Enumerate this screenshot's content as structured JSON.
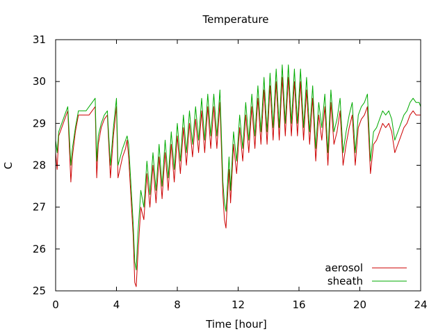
{
  "chart_data": {
    "type": "line",
    "title": "Temperature",
    "xlabel": "Time [hour]",
    "ylabel": "C",
    "xlim": [
      0,
      24
    ],
    "ylim": [
      25,
      31
    ],
    "xticks": [
      0,
      4,
      8,
      12,
      16,
      20,
      24
    ],
    "yticks": [
      25,
      26,
      27,
      28,
      29,
      30,
      31
    ],
    "grid": false,
    "legend_position": "bottom-right",
    "series": [
      {
        "name": "aerosol",
        "color": "#cc0000",
        "x": [
          0.0,
          0.1,
          0.2,
          0.4,
          0.6,
          0.8,
          1.0,
          1.1,
          1.3,
          1.5,
          1.6,
          1.8,
          2.0,
          2.2,
          2.4,
          2.6,
          2.7,
          2.8,
          3.0,
          3.2,
          3.4,
          3.6,
          3.8,
          4.0,
          4.1,
          4.4,
          4.6,
          4.7,
          4.8,
          5.1,
          5.2,
          5.3,
          5.4,
          5.6,
          5.8,
          6.0,
          6.2,
          6.4,
          6.6,
          6.8,
          7.0,
          7.2,
          7.4,
          7.6,
          7.8,
          8.0,
          8.2,
          8.4,
          8.6,
          8.8,
          9.0,
          9.2,
          9.4,
          9.6,
          9.8,
          10.0,
          10.2,
          10.4,
          10.6,
          10.8,
          11.0,
          11.1,
          11.2,
          11.4,
          11.5,
          11.7,
          11.9,
          12.1,
          12.3,
          12.5,
          12.7,
          12.9,
          13.1,
          13.3,
          13.5,
          13.7,
          13.9,
          14.1,
          14.3,
          14.5,
          14.7,
          14.9,
          15.1,
          15.3,
          15.5,
          15.7,
          15.9,
          16.1,
          16.3,
          16.5,
          16.7,
          16.9,
          17.1,
          17.3,
          17.5,
          17.7,
          17.9,
          18.1,
          18.3,
          18.5,
          18.7,
          18.9,
          19.1,
          19.3,
          19.5,
          19.7,
          19.9,
          20.1,
          20.3,
          20.5,
          20.7,
          20.9,
          21.1,
          21.3,
          21.5,
          21.7,
          21.9,
          22.1,
          22.3,
          22.5,
          22.7,
          22.9,
          23.1,
          23.3,
          23.5,
          23.7,
          23.9,
          24.0
        ],
        "values": [
          28.3,
          27.9,
          28.7,
          28.9,
          29.1,
          29.3,
          27.6,
          28.2,
          28.8,
          29.2,
          29.2,
          29.2,
          29.2,
          29.2,
          29.3,
          29.4,
          27.7,
          28.5,
          28.9,
          29.1,
          29.2,
          27.7,
          28.7,
          29.4,
          27.7,
          28.2,
          28.4,
          28.6,
          28.2,
          26.3,
          25.2,
          25.1,
          25.8,
          27.0,
          26.7,
          27.8,
          27.0,
          28.0,
          27.1,
          28.2,
          27.2,
          28.3,
          27.4,
          28.5,
          27.6,
          28.7,
          27.8,
          28.9,
          28.0,
          29.0,
          28.2,
          29.1,
          28.3,
          29.3,
          28.3,
          29.4,
          28.4,
          29.4,
          28.4,
          29.5,
          27.3,
          26.7,
          26.5,
          27.9,
          27.1,
          28.5,
          27.8,
          28.9,
          28.1,
          29.2,
          28.3,
          29.4,
          28.4,
          29.6,
          28.5,
          29.8,
          28.5,
          29.9,
          28.6,
          30.0,
          28.6,
          30.1,
          28.7,
          30.1,
          28.7,
          30.0,
          28.7,
          30.0,
          28.6,
          29.8,
          28.5,
          29.6,
          28.1,
          29.2,
          28.6,
          29.4,
          28.0,
          29.5,
          28.5,
          28.8,
          29.3,
          28.0,
          28.5,
          28.9,
          29.2,
          28.0,
          28.9,
          29.1,
          29.2,
          29.4,
          27.8,
          28.5,
          28.6,
          28.8,
          29.0,
          28.9,
          29.0,
          28.8,
          28.3,
          28.5,
          28.7,
          28.9,
          29.0,
          29.2,
          29.3,
          29.2,
          29.2,
          29.2
        ]
      },
      {
        "name": "sheath",
        "color": "#00aa00",
        "x": [
          0.0,
          0.1,
          0.2,
          0.4,
          0.6,
          0.8,
          1.0,
          1.1,
          1.3,
          1.5,
          1.6,
          1.8,
          2.0,
          2.2,
          2.4,
          2.6,
          2.7,
          2.8,
          3.0,
          3.2,
          3.4,
          3.6,
          3.8,
          4.0,
          4.1,
          4.4,
          4.6,
          4.7,
          4.8,
          5.1,
          5.2,
          5.3,
          5.4,
          5.6,
          5.8,
          6.0,
          6.2,
          6.4,
          6.6,
          6.8,
          7.0,
          7.2,
          7.4,
          7.6,
          7.8,
          8.0,
          8.2,
          8.4,
          8.6,
          8.8,
          9.0,
          9.2,
          9.4,
          9.6,
          9.8,
          10.0,
          10.2,
          10.4,
          10.6,
          10.8,
          11.0,
          11.1,
          11.2,
          11.4,
          11.5,
          11.7,
          11.9,
          12.1,
          12.3,
          12.5,
          12.7,
          12.9,
          13.1,
          13.3,
          13.5,
          13.7,
          13.9,
          14.1,
          14.3,
          14.5,
          14.7,
          14.9,
          15.1,
          15.3,
          15.5,
          15.7,
          15.9,
          16.1,
          16.3,
          16.5,
          16.7,
          16.9,
          17.1,
          17.3,
          17.5,
          17.7,
          17.9,
          18.1,
          18.3,
          18.5,
          18.7,
          18.9,
          19.1,
          19.3,
          19.5,
          19.7,
          19.9,
          20.1,
          20.3,
          20.5,
          20.7,
          20.9,
          21.1,
          21.3,
          21.5,
          21.7,
          21.9,
          22.1,
          22.3,
          22.5,
          22.7,
          22.9,
          23.1,
          23.3,
          23.5,
          23.7,
          23.9,
          24.0
        ],
        "values": [
          28.6,
          28.3,
          28.8,
          29.0,
          29.2,
          29.4,
          28.0,
          28.4,
          28.9,
          29.3,
          29.3,
          29.3,
          29.3,
          29.4,
          29.5,
          29.6,
          28.1,
          28.7,
          29.0,
          29.2,
          29.3,
          28.0,
          28.9,
          29.6,
          28.0,
          28.4,
          28.6,
          28.7,
          28.5,
          26.6,
          25.7,
          25.5,
          26.3,
          27.4,
          27.0,
          28.1,
          27.3,
          28.3,
          27.4,
          28.5,
          27.5,
          28.6,
          27.7,
          28.8,
          27.9,
          29.0,
          28.1,
          29.2,
          28.3,
          29.3,
          28.5,
          29.4,
          28.6,
          29.6,
          28.6,
          29.7,
          28.7,
          29.7,
          28.7,
          29.8,
          27.6,
          27.1,
          26.9,
          28.2,
          27.4,
          28.8,
          28.1,
          29.2,
          28.4,
          29.5,
          28.6,
          29.7,
          28.7,
          29.9,
          28.8,
          30.1,
          28.8,
          30.2,
          28.9,
          30.3,
          28.9,
          30.4,
          29.0,
          30.4,
          29.0,
          30.3,
          29.0,
          30.3,
          28.9,
          30.1,
          28.8,
          29.9,
          28.4,
          29.5,
          28.9,
          29.7,
          28.3,
          29.8,
          28.8,
          29.1,
          29.6,
          28.3,
          28.8,
          29.2,
          29.5,
          28.3,
          29.2,
          29.4,
          29.5,
          29.7,
          28.1,
          28.8,
          28.9,
          29.1,
          29.3,
          29.2,
          29.3,
          29.1,
          28.6,
          28.8,
          29.0,
          29.2,
          29.3,
          29.5,
          29.6,
          29.5,
          29.5,
          29.4
        ]
      }
    ]
  }
}
